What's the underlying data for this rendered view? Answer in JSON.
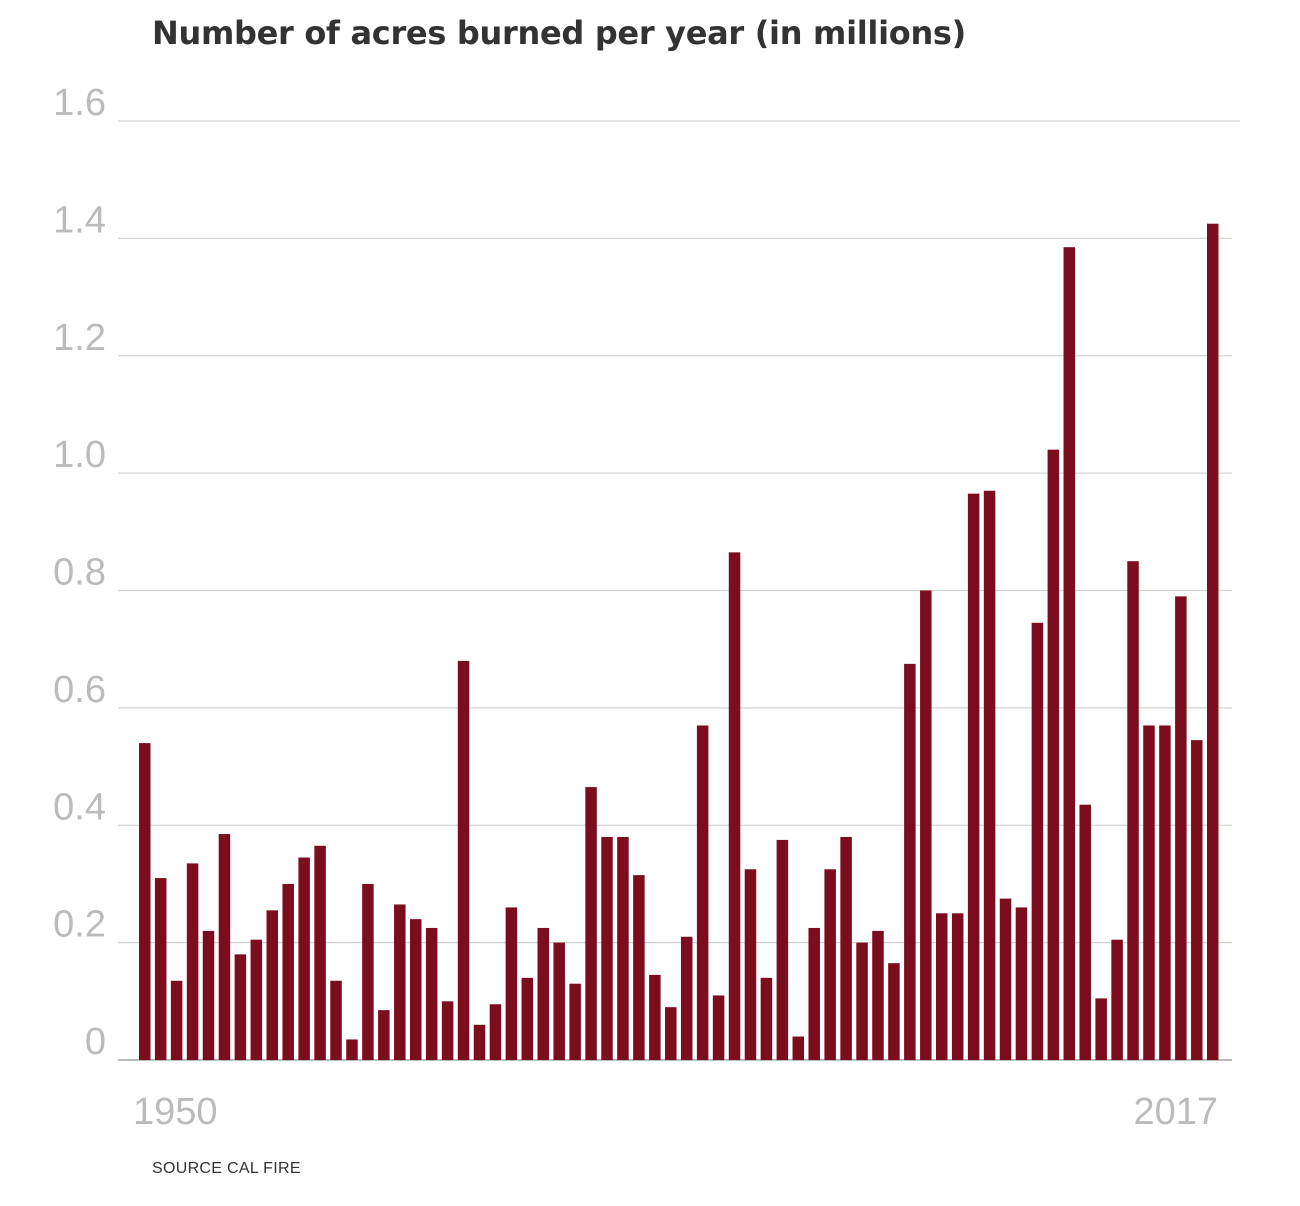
{
  "chart_data": {
    "type": "bar",
    "title": "Number of acres burned per year (in millions)",
    "source": "SOURCE CAL FIRE",
    "xlabel": "",
    "ylabel": "",
    "ylim": [
      0,
      1.6
    ],
    "y_ticks": [
      "0",
      "0.2",
      "0.4",
      "0.6",
      "0.8",
      "1.0",
      "1.2",
      "1.4",
      "1.6"
    ],
    "x_first_label": "1950",
    "x_last_label": "2017",
    "grid": true,
    "bar_color": "#7b0d1e",
    "categories": [
      "1950",
      "1951",
      "1952",
      "1953",
      "1954",
      "1955",
      "1956",
      "1957",
      "1958",
      "1959",
      "1960",
      "1961",
      "1962",
      "1963",
      "1964",
      "1965",
      "1966",
      "1967",
      "1968",
      "1969",
      "1970",
      "1971",
      "1972",
      "1973",
      "1974",
      "1975",
      "1976",
      "1977",
      "1978",
      "1979",
      "1980",
      "1981",
      "1982",
      "1983",
      "1984",
      "1985",
      "1986",
      "1987",
      "1988",
      "1989",
      "1990",
      "1991",
      "1992",
      "1993",
      "1994",
      "1995",
      "1996",
      "1997",
      "1998",
      "1999",
      "2000",
      "2001",
      "2002",
      "2003",
      "2004",
      "2005",
      "2006",
      "2007",
      "2008",
      "2009",
      "2010",
      "2011",
      "2012",
      "2013",
      "2014",
      "2015",
      "2016",
      "2017"
    ],
    "values": [
      0.54,
      0.31,
      0.135,
      0.335,
      0.22,
      0.385,
      0.18,
      0.205,
      0.255,
      0.3,
      0.345,
      0.365,
      0.135,
      0.035,
      0.3,
      0.085,
      0.265,
      0.24,
      0.225,
      0.1,
      0.68,
      0.06,
      0.095,
      0.26,
      0.14,
      0.225,
      0.2,
      0.13,
      0.465,
      0.38,
      0.38,
      0.315,
      0.145,
      0.09,
      0.21,
      0.57,
      0.11,
      0.865,
      0.325,
      0.14,
      0.375,
      0.04,
      0.225,
      0.325,
      0.38,
      0.2,
      0.22,
      0.165,
      0.675,
      0.8,
      0.25,
      0.25,
      0.965,
      0.97,
      0.275,
      0.26,
      0.745,
      1.04,
      1.385,
      0.435,
      0.105,
      0.205,
      0.85,
      0.57,
      0.57,
      0.79,
      0.545,
      1.425
    ]
  }
}
